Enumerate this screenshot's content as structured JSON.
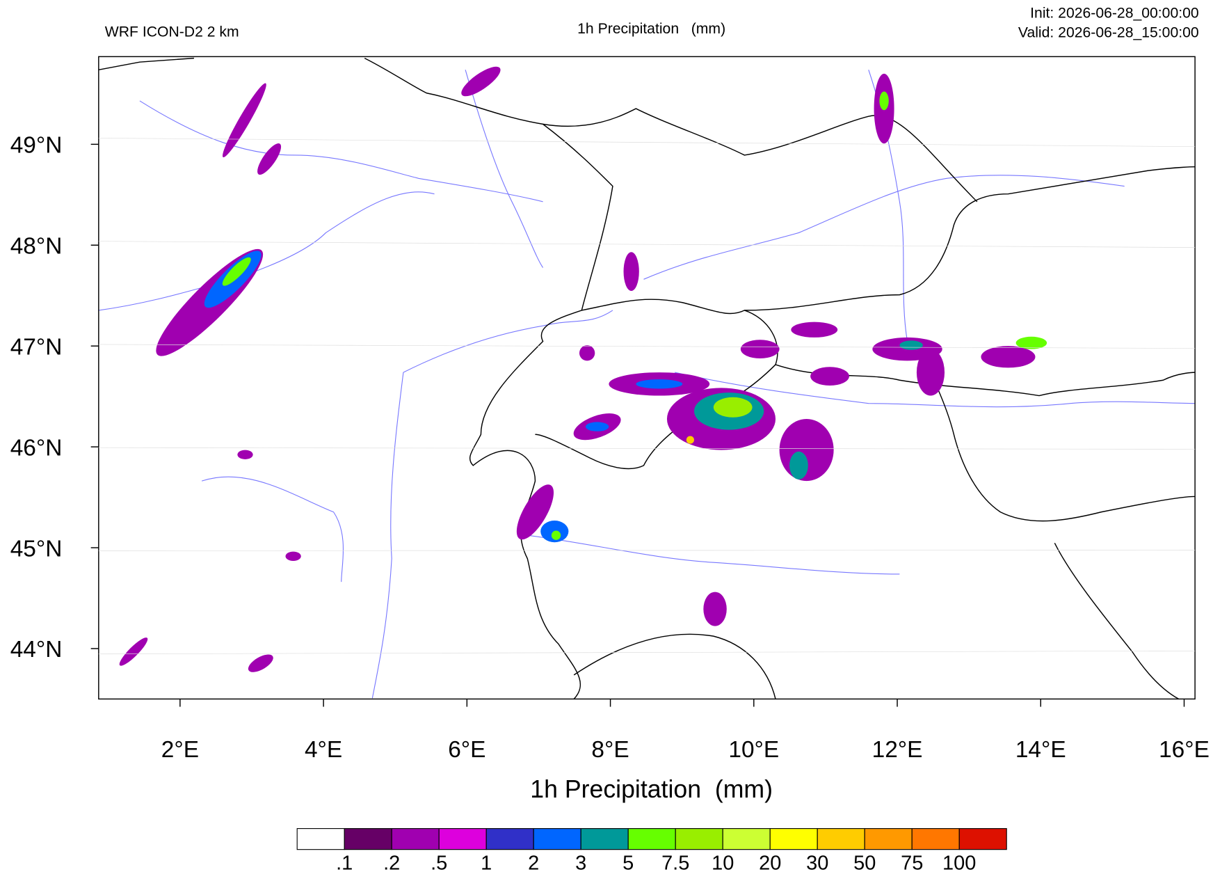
{
  "header": {
    "left": "WRF ICON-D2 2 km",
    "center": "1h Precipitation   (mm)",
    "init": "Init: 2026-06-28_00:00:00",
    "valid": "Valid: 2026-06-28_15:00:00"
  },
  "map": {
    "lat_labels": [
      "49°N",
      "48°N",
      "47°N",
      "46°N",
      "45°N",
      "44°N"
    ],
    "lon_labels": [
      "2°E",
      "4°E",
      "6°E",
      "8°E",
      "10°E",
      "12°E",
      "14°E",
      "16°E"
    ],
    "x_label": "1h Precipitation  (mm)"
  },
  "colorbar": {
    "colors": [
      "#ffffff",
      "#660066",
      "#a000b0",
      "#dd00dd",
      "#3030c8",
      "#0066ff",
      "#009999",
      "#66ff00",
      "#99ee00",
      "#ccff33",
      "#ffff00",
      "#ffcc00",
      "#ff9900",
      "#ff7700",
      "#dd1100"
    ],
    "labels": [
      ".1",
      ".2",
      ".5",
      "1",
      "2",
      "3",
      "5",
      "7.5",
      "10",
      "20",
      "30",
      "50",
      "75",
      "100"
    ]
  }
}
